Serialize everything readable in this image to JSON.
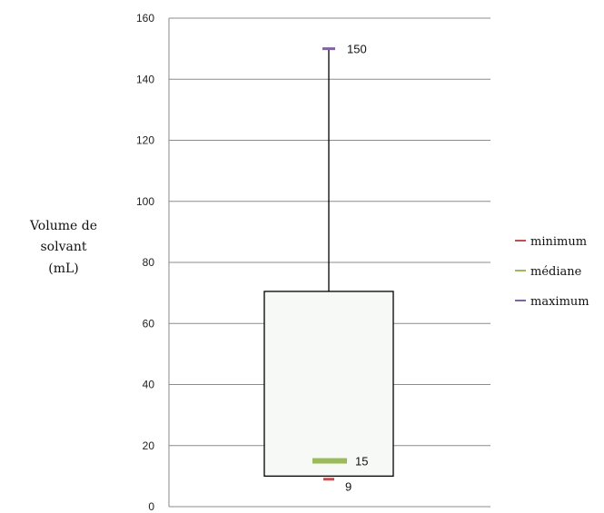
{
  "chart_data": {
    "type": "box",
    "ylabel_lines": [
      "Volume de",
      "solvant",
      "(mL)"
    ],
    "ylim": [
      0,
      160
    ],
    "yticks": [
      "0",
      "20",
      "40",
      "60",
      "80",
      "100",
      "120",
      "140",
      "160"
    ],
    "grid": true,
    "box": {
      "lower": 10,
      "upper": 70.5
    },
    "whisker_top": 150,
    "series": [
      {
        "name": "minimum",
        "value": 9,
        "label": "9",
        "color": "#c0504d"
      },
      {
        "name": "médiane",
        "value": 15,
        "label": "15",
        "color": "#9bbb59"
      },
      {
        "name": "maximum",
        "value": 150,
        "label": "150",
        "color": "#8064a2"
      }
    ],
    "legend_position": "right"
  }
}
